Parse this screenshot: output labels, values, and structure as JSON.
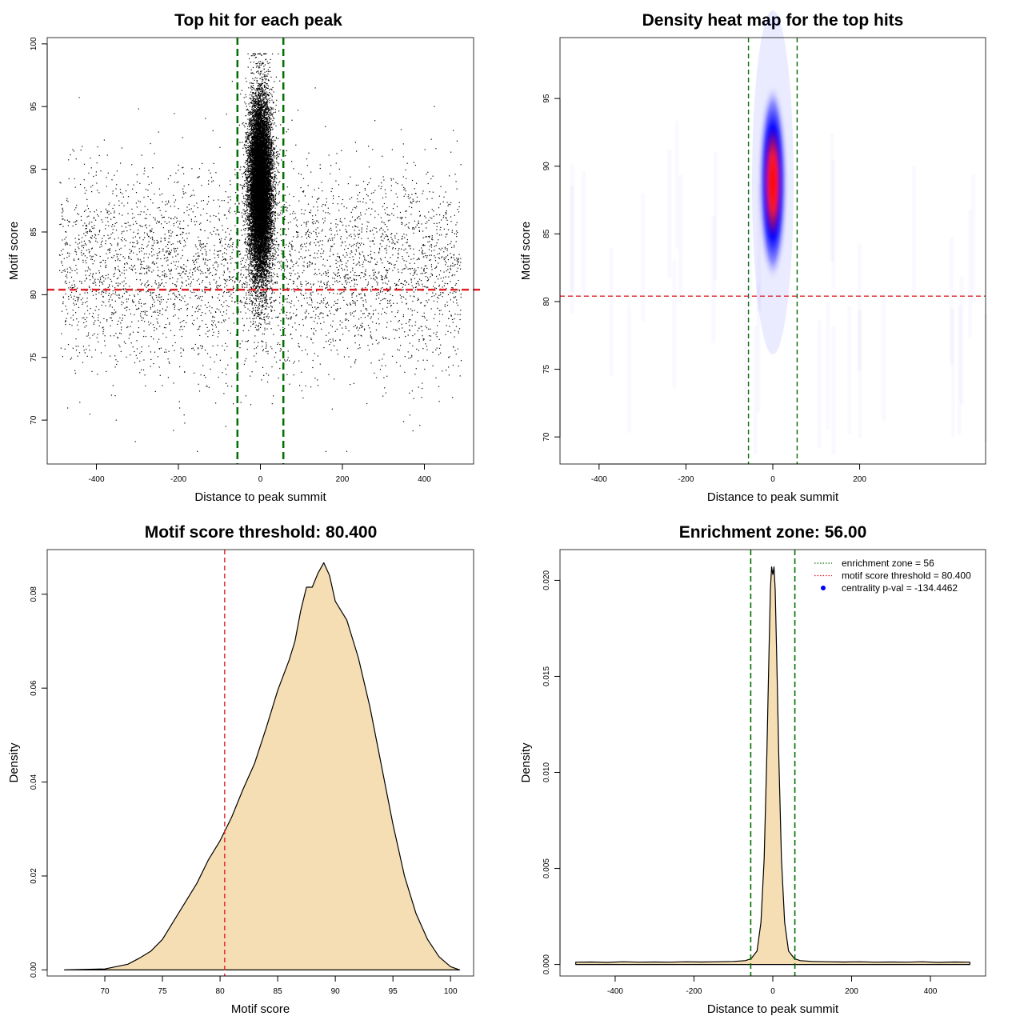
{
  "colors": {
    "zone_line": "#007000",
    "threshold_line": "#e0202a",
    "density_fill": "#f5deb3",
    "heat_low": "#ffffff",
    "heat_mid": "#0000ff",
    "heat_high": "#ff0000",
    "points": "#000000"
  },
  "chart_data": [
    {
      "type": "scatter",
      "title": "Top hit for each peak",
      "xlabel": "Distance to peak summit",
      "ylabel": "Motif score",
      "xlim": [
        -520,
        520
      ],
      "ylim": [
        66.5,
        100.5
      ],
      "xticks": [
        -400,
        -200,
        0,
        200,
        400
      ],
      "yticks": [
        70,
        75,
        80,
        85,
        90,
        95,
        100
      ],
      "grid": false,
      "vlines": [
        -56,
        56
      ],
      "hline": 80.4,
      "point_groups": [
        {
          "name": "",
          "x_range": [
            -490,
            490
          ],
          "y_center": 82,
          "y_spread": 4,
          "count": 4200,
          "x_distribution": "uniform"
        },
        {
          "name": "",
          "x_center": 0,
          "x_spread": 14,
          "y_center": 88.5,
          "y_spread": 3.6,
          "count": 14000,
          "x_distribution": "normal"
        }
      ]
    },
    {
      "type": "heatmap",
      "title": "Density heat map for the top hits",
      "xlabel": "Distance to peak summit",
      "ylabel": "Motif score",
      "xlim": [
        -490,
        490
      ],
      "ylim": [
        68,
        99.5
      ],
      "xticks": [
        -400,
        -200,
        0,
        200
      ],
      "yticks": [
        70,
        75,
        80,
        85,
        90,
        95
      ],
      "grid": false,
      "vlines": [
        -56,
        56
      ],
      "hline": 80.4,
      "density_peak": {
        "x": 0,
        "y": 88.8
      }
    },
    {
      "type": "area",
      "title": "Motif score threshold: 80.400",
      "xlabel": "Motif score",
      "ylabel": "Density",
      "xlim": [
        65,
        102
      ],
      "ylim": [
        -0.0013,
        0.0895
      ],
      "xticks": [
        70,
        75,
        80,
        85,
        90,
        95,
        100
      ],
      "yticks": [
        0.0,
        0.02,
        0.04,
        0.06,
        0.08
      ],
      "ytick_labels": [
        "0.00",
        "0.02",
        "0.04",
        "0.06",
        "0.08"
      ],
      "grid": false,
      "vline": 80.4,
      "x": [
        66.5,
        70,
        72,
        73,
        74,
        75,
        76,
        77,
        78,
        79,
        80,
        81,
        82,
        83,
        84,
        85,
        86,
        86.5,
        87,
        87.5,
        88,
        88.5,
        89,
        89.5,
        90,
        90.5,
        91,
        92,
        93,
        94,
        95,
        96,
        97,
        98,
        99,
        100,
        100.8
      ],
      "y": [
        0.0,
        0.0002,
        0.0012,
        0.0025,
        0.004,
        0.0065,
        0.0105,
        0.0145,
        0.0185,
        0.0235,
        0.0275,
        0.0325,
        0.0385,
        0.044,
        0.0515,
        0.0595,
        0.066,
        0.07,
        0.0765,
        0.0815,
        0.0815,
        0.0845,
        0.0867,
        0.084,
        0.0785,
        0.0765,
        0.0745,
        0.0665,
        0.056,
        0.0435,
        0.031,
        0.02,
        0.012,
        0.0065,
        0.0028,
        0.0007,
        0.0
      ]
    },
    {
      "type": "area",
      "title": "Enrichment zone: 56.00",
      "xlabel": "Distance to peak summit",
      "ylabel": "Density",
      "xlim": [
        -540,
        540
      ],
      "ylim": [
        -0.0006,
        0.0216
      ],
      "xticks": [
        -400,
        -200,
        0,
        200,
        400
      ],
      "yticks": [
        0.0,
        0.005,
        0.01,
        0.015,
        0.02
      ],
      "ytick_labels": [
        "0.000",
        "0.005",
        "0.010",
        "0.015",
        "0.020"
      ],
      "grid": false,
      "vlines": [
        -56,
        56
      ],
      "x": [
        -500,
        -460,
        -420,
        -380,
        -340,
        -300,
        -260,
        -220,
        -180,
        -140,
        -100,
        -70,
        -55,
        -40,
        -30,
        -22,
        -15,
        -10,
        -6,
        -3,
        0,
        3,
        6,
        10,
        15,
        22,
        30,
        40,
        55,
        70,
        100,
        140,
        180,
        220,
        260,
        300,
        340,
        380,
        420,
        460,
        500
      ],
      "y": [
        0.00012,
        0.00013,
        0.00011,
        0.00014,
        0.00012,
        0.00013,
        0.00012,
        0.00014,
        0.00013,
        0.00014,
        0.00016,
        0.0002,
        0.0003,
        0.0007,
        0.0022,
        0.0055,
        0.011,
        0.016,
        0.0195,
        0.0207,
        0.0203,
        0.0207,
        0.0195,
        0.016,
        0.011,
        0.0055,
        0.0022,
        0.0007,
        0.0003,
        0.0002,
        0.00016,
        0.00014,
        0.00013,
        0.00014,
        0.00012,
        0.00013,
        0.00012,
        0.00014,
        0.00011,
        0.00013,
        0.00012
      ],
      "legend_position": "top-right",
      "legend": [
        {
          "label": "enrichment zone = 56",
          "marker": "dotted-line",
          "color": "#007000"
        },
        {
          "label": "motif score threshold = 80.400",
          "marker": "dotted-line",
          "color": "#e0202a"
        },
        {
          "label": "centrality p-val = -134.4462",
          "marker": "point",
          "color": "#0000ff"
        }
      ]
    }
  ]
}
